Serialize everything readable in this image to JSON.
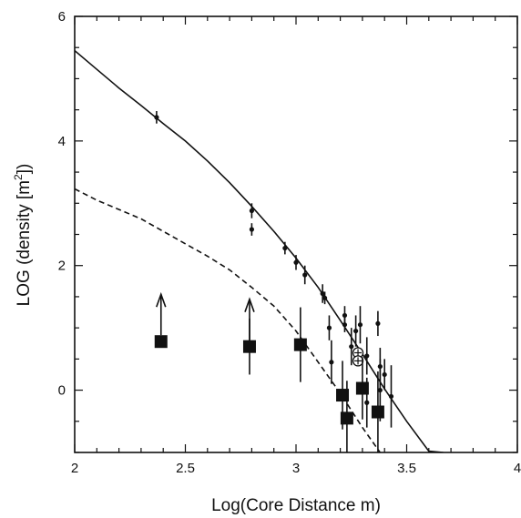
{
  "chart_data": {
    "type": "scatter",
    "title": "",
    "xlabel": "Log(Core Distance m)",
    "ylabel": "LOG (density [m",
    "ylabel_sup": "2",
    "ylabel_tail": "])",
    "xlim": [
      2,
      4
    ],
    "ylim": [
      -1,
      6
    ],
    "x_ticks": [
      2,
      2.5,
      3,
      3.5,
      4
    ],
    "x_tick_labels": [
      "2",
      "2.5",
      "3",
      "3.5",
      "4"
    ],
    "y_ticks": [
      0,
      2,
      4,
      6
    ],
    "y_tick_labels": [
      "0",
      "2",
      "4",
      "6"
    ],
    "grid": false,
    "colors": {
      "ink": "#111111"
    },
    "series": [
      {
        "style": "solid-line",
        "points": [
          [
            2.0,
            5.45
          ],
          [
            2.1,
            5.15
          ],
          [
            2.2,
            4.85
          ],
          [
            2.3,
            4.57
          ],
          [
            2.4,
            4.28
          ],
          [
            2.5,
            4.0
          ],
          [
            2.6,
            3.68
          ],
          [
            2.7,
            3.33
          ],
          [
            2.8,
            2.95
          ],
          [
            2.9,
            2.55
          ],
          [
            3.0,
            2.12
          ],
          [
            3.1,
            1.65
          ],
          [
            3.2,
            1.12
          ],
          [
            3.3,
            0.58
          ],
          [
            3.4,
            0.02
          ],
          [
            3.5,
            -0.5
          ],
          [
            3.6,
            -0.98
          ],
          [
            3.665,
            -1.0
          ]
        ]
      },
      {
        "style": "dashed-line",
        "points": [
          [
            2.0,
            3.23
          ],
          [
            2.1,
            3.05
          ],
          [
            2.2,
            2.9
          ],
          [
            2.3,
            2.75
          ],
          [
            2.4,
            2.55
          ],
          [
            2.5,
            2.35
          ],
          [
            2.6,
            2.15
          ],
          [
            2.7,
            1.93
          ],
          [
            2.8,
            1.65
          ],
          [
            2.9,
            1.35
          ],
          [
            3.0,
            0.95
          ],
          [
            3.1,
            0.45
          ],
          [
            3.2,
            -0.05
          ],
          [
            3.3,
            -0.6
          ],
          [
            3.38,
            -1.0
          ]
        ]
      },
      {
        "style": "small-dots-with-error-bars",
        "points": [
          {
            "x": 2.37,
            "y": 4.38,
            "err": 0.1
          },
          {
            "x": 2.8,
            "y": 2.88,
            "err": 0.12
          },
          {
            "x": 2.8,
            "y": 2.58,
            "err": 0.1
          },
          {
            "x": 2.95,
            "y": 2.28,
            "err": 0.1
          },
          {
            "x": 3.0,
            "y": 2.05,
            "err": 0.12
          },
          {
            "x": 3.04,
            "y": 1.85,
            "err": 0.15
          },
          {
            "x": 3.12,
            "y": 1.55,
            "err": 0.15
          },
          {
            "x": 3.13,
            "y": 1.48,
            "err": 0.1
          },
          {
            "x": 3.15,
            "y": 1.0,
            "err": 0.2
          },
          {
            "x": 3.16,
            "y": 0.45,
            "err": 0.35
          },
          {
            "x": 3.22,
            "y": 1.2,
            "err": 0.15
          },
          {
            "x": 3.22,
            "y": 1.05,
            "err": 0.12
          },
          {
            "x": 3.25,
            "y": 0.7,
            "err": 0.3
          },
          {
            "x": 3.27,
            "y": 0.95,
            "err": 0.25
          },
          {
            "x": 3.29,
            "y": 1.05,
            "err": 0.3
          },
          {
            "x": 3.32,
            "y": 0.55,
            "err": 0.3
          },
          {
            "x": 3.32,
            "y": -0.2,
            "err": 0.4
          },
          {
            "x": 3.37,
            "y": 1.07,
            "err": 0.2
          },
          {
            "x": 3.38,
            "y": 0.38,
            "err": 0.3
          },
          {
            "x": 3.38,
            "y": 0.0,
            "err": 0.5
          },
          {
            "x": 3.4,
            "y": 0.25,
            "err": 0.25
          },
          {
            "x": 3.43,
            "y": -0.1,
            "err": 0.5
          }
        ]
      },
      {
        "style": "open-circles-with-plus",
        "points": [
          {
            "x": 3.28,
            "y": 0.6
          },
          {
            "x": 3.28,
            "y": 0.47
          }
        ]
      },
      {
        "style": "filled-squares",
        "points": [
          {
            "x": 2.39,
            "y": 0.78,
            "lower_limit": true,
            "err": 0
          },
          {
            "x": 2.79,
            "y": 0.7,
            "lower_limit": true,
            "err": 0.45
          },
          {
            "x": 3.02,
            "y": 0.73,
            "lower_limit": false,
            "err": 0.6
          },
          {
            "x": 3.21,
            "y": -0.08,
            "lower_limit": false,
            "err": 0.55
          },
          {
            "x": 3.23,
            "y": -0.45,
            "lower_limit": false,
            "err": 0.6
          },
          {
            "x": 3.3,
            "y": 0.03,
            "lower_limit": false,
            "err": 0.5
          },
          {
            "x": 3.37,
            "y": -0.35,
            "lower_limit": false,
            "err": 0.65
          }
        ]
      }
    ]
  }
}
